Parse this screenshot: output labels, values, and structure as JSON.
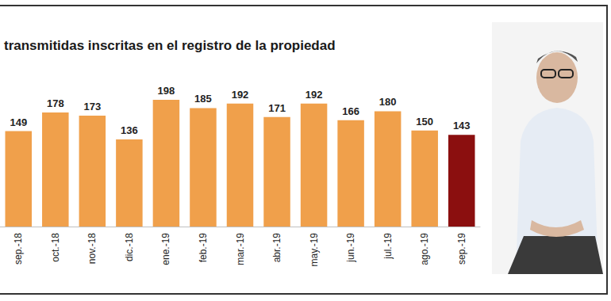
{
  "chart_data": {
    "type": "bar",
    "title": "transmitidas inscritas en el registro de la propiedad",
    "categories": [
      "sep.-18",
      "oct.-18",
      "nov.-18",
      "dic.-18",
      "ene.-19",
      "feb.-19",
      "mar.-19",
      "abr.-19",
      "may.-19",
      "jun.-19",
      "jul.-19",
      "ago.-19",
      "sep.-19"
    ],
    "values": [
      149,
      178,
      173,
      136,
      198,
      185,
      192,
      171,
      192,
      166,
      180,
      150,
      143
    ],
    "colors": [
      "#f0a04b",
      "#f0a04b",
      "#f0a04b",
      "#f0a04b",
      "#f0a04b",
      "#f0a04b",
      "#f0a04b",
      "#f0a04b",
      "#f0a04b",
      "#f0a04b",
      "#f0a04b",
      "#f0a04b",
      "#8b0f0f"
    ],
    "ylim": [
      0,
      230
    ],
    "grid": false,
    "data_labels": true,
    "tick_labels": "x"
  }
}
